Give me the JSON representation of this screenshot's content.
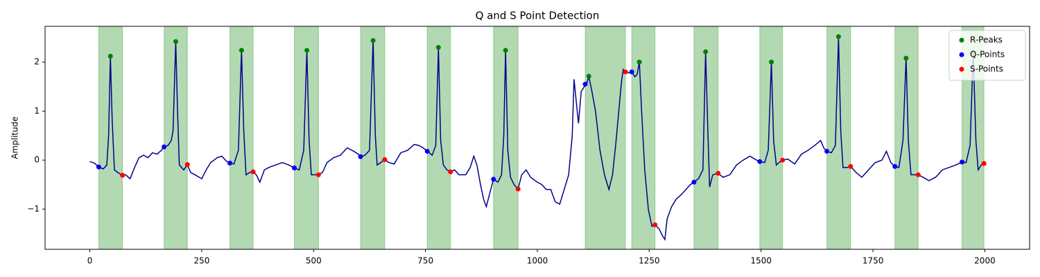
{
  "chart_data": {
    "type": "line",
    "title": "Q and S Point Detection",
    "ylabel": "Amplitude",
    "xlim": [
      -100,
      2100
    ],
    "ylim": [
      -1.82,
      2.73
    ],
    "xticks": [
      0,
      250,
      500,
      750,
      1000,
      1250,
      1500,
      1750,
      2000
    ],
    "yticks": [
      {
        "value": -1,
        "label": "−1"
      },
      0,
      1,
      2
    ],
    "legend": "upper right",
    "span_color": "#008000",
    "spans": [
      [
        20,
        73
      ],
      [
        166,
        218
      ],
      [
        313,
        365
      ],
      [
        457,
        511
      ],
      [
        605,
        659
      ],
      [
        754,
        806
      ],
      [
        902,
        957
      ],
      [
        1107,
        1197
      ],
      [
        1211,
        1263
      ],
      [
        1350,
        1404
      ],
      [
        1497,
        1548
      ],
      [
        1647,
        1700
      ],
      [
        1799,
        1851
      ],
      [
        1949,
        1998
      ]
    ],
    "series": [
      {
        "type": "line",
        "color": "#00008b",
        "x": [
          0,
          10,
          20,
          30,
          38,
          42,
          46,
          50,
          55,
          62,
          73,
          80,
          90,
          100,
          110,
          120,
          130,
          140,
          150,
          160,
          166,
          175,
          182,
          186,
          192,
          196,
          200,
          210,
          218,
          225,
          235,
          250,
          260,
          270,
          285,
          295,
          305,
          313,
          322,
          332,
          339,
          344,
          349,
          358,
          365,
          372,
          380,
          390,
          400,
          415,
          430,
          445,
          457,
          468,
          478,
          485,
          490,
          495,
          505,
          511,
          520,
          530,
          545,
          560,
          575,
          590,
          600,
          605,
          615,
          625,
          633,
          638,
          642,
          650,
          659,
          668,
          680,
          695,
          710,
          725,
          735,
          745,
          754,
          765,
          773,
          779,
          784,
          790,
          798,
          806,
          815,
          825,
          840,
          850,
          858,
          865,
          873,
          880,
          886,
          893,
          902,
          912,
          920,
          925,
          929,
          934,
          940,
          948,
          957,
          965,
          975,
          985,
          1000,
          1010,
          1020,
          1030,
          1040,
          1050,
          1060,
          1070,
          1078,
          1082,
          1088,
          1092,
          1098,
          1105,
          1110,
          1115,
          1122,
          1130,
          1140,
          1150,
          1160,
          1168,
          1175,
          1182,
          1188,
          1192,
          1197,
          1205,
          1211,
          1218,
          1223,
          1228,
          1233,
          1240,
          1248,
          1256,
          1263,
          1272,
          1280,
          1285,
          1290,
          1300,
          1310,
          1322,
          1332,
          1342,
          1350,
          1360,
          1370,
          1376,
          1381,
          1385,
          1392,
          1404,
          1415,
          1430,
          1445,
          1460,
          1475,
          1490,
          1497,
          1508,
          1516,
          1523,
          1528,
          1534,
          1540,
          1548,
          1560,
          1575,
          1590,
          1605,
          1620,
          1633,
          1640,
          1647,
          1657,
          1666,
          1673,
          1678,
          1683,
          1692,
          1700,
          1712,
          1725,
          1740,
          1755,
          1770,
          1780,
          1790,
          1799,
          1808,
          1817,
          1824,
          1829,
          1835,
          1843,
          1851,
          1862,
          1875,
          1890,
          1905,
          1920,
          1935,
          1949,
          1958,
          1967,
          1974,
          1980,
          1985,
          1992,
          1998
        ],
        "y": [
          -0.03,
          -0.06,
          -0.14,
          -0.18,
          -0.1,
          0.5,
          2.12,
          0.8,
          -0.2,
          -0.25,
          -0.31,
          -0.3,
          -0.38,
          -0.15,
          0.05,
          0.1,
          0.05,
          0.15,
          0.12,
          0.2,
          0.27,
          0.3,
          0.4,
          0.6,
          2.42,
          1.0,
          -0.1,
          -0.2,
          -0.09,
          -0.25,
          -0.3,
          -0.38,
          -0.2,
          -0.05,
          0.05,
          0.08,
          -0.02,
          -0.06,
          -0.08,
          0.2,
          2.24,
          0.6,
          -0.3,
          -0.25,
          -0.24,
          -0.3,
          -0.45,
          -0.2,
          -0.15,
          -0.1,
          -0.05,
          -0.1,
          -0.16,
          -0.2,
          0.2,
          2.24,
          0.4,
          -0.3,
          -0.3,
          -0.3,
          -0.25,
          -0.05,
          0.05,
          0.1,
          0.25,
          0.18,
          0.12,
          0.07,
          0.1,
          0.2,
          2.44,
          0.5,
          -0.1,
          -0.05,
          0.01,
          -0.05,
          -0.08,
          0.15,
          0.2,
          0.32,
          0.3,
          0.25,
          0.18,
          0.1,
          0.3,
          2.3,
          0.4,
          -0.1,
          -0.2,
          -0.24,
          -0.2,
          -0.3,
          -0.3,
          -0.15,
          0.08,
          -0.1,
          -0.5,
          -0.8,
          -0.95,
          -0.7,
          -0.39,
          -0.45,
          -0.3,
          0.5,
          2.24,
          0.2,
          -0.35,
          -0.5,
          -0.59,
          -0.3,
          -0.2,
          -0.35,
          -0.45,
          -0.5,
          -0.6,
          -0.6,
          -0.85,
          -0.9,
          -0.6,
          -0.3,
          0.5,
          1.65,
          1.1,
          0.75,
          1.4,
          1.5,
          1.55,
          1.71,
          1.4,
          1.0,
          0.2,
          -0.3,
          -0.6,
          -0.3,
          0.3,
          1.0,
          1.6,
          1.85,
          1.8,
          1.78,
          1.8,
          1.7,
          1.75,
          2.0,
          1.0,
          -0.2,
          -1.0,
          -1.35,
          -1.32,
          -1.4,
          -1.55,
          -1.62,
          -1.2,
          -0.95,
          -0.8,
          -0.7,
          -0.6,
          -0.5,
          -0.45,
          -0.38,
          -0.2,
          2.21,
          0.6,
          -0.55,
          -0.3,
          -0.27,
          -0.35,
          -0.3,
          -0.1,
          0.0,
          0.08,
          0.0,
          -0.03,
          -0.05,
          0.2,
          2.0,
          0.4,
          -0.1,
          -0.05,
          0.0,
          0.02,
          -0.08,
          0.12,
          0.2,
          0.3,
          0.4,
          0.25,
          0.18,
          0.15,
          0.3,
          2.52,
          0.6,
          -0.15,
          -0.15,
          -0.13,
          -0.25,
          -0.35,
          -0.2,
          -0.05,
          0.0,
          0.18,
          -0.05,
          -0.13,
          -0.15,
          0.4,
          2.08,
          0.4,
          -0.3,
          -0.3,
          -0.3,
          -0.35,
          -0.42,
          -0.35,
          -0.2,
          -0.15,
          -0.1,
          -0.04,
          -0.05,
          0.3,
          2.2,
          0.4,
          -0.2,
          -0.1,
          -0.07
        ]
      },
      {
        "type": "scatter",
        "name": "R-Peaks",
        "color": "#008000",
        "x": [
          46,
          192,
          339,
          485,
          633,
          779,
          929,
          1115,
          1228,
          1376,
          1523,
          1673,
          1824,
          1974
        ],
        "y": [
          2.12,
          2.42,
          2.24,
          2.24,
          2.44,
          2.3,
          2.24,
          1.71,
          2.0,
          2.21,
          2.0,
          2.52,
          2.08,
          2.2
        ]
      },
      {
        "type": "scatter",
        "name": "Q-Points",
        "color": "#0000ff",
        "x": [
          20,
          166,
          313,
          457,
          605,
          754,
          902,
          1107,
          1211,
          1350,
          1497,
          1647,
          1799,
          1949
        ],
        "y": [
          -0.14,
          0.27,
          -0.06,
          -0.16,
          0.07,
          0.18,
          -0.39,
          1.55,
          1.8,
          -0.45,
          -0.03,
          0.18,
          -0.13,
          -0.04
        ]
      },
      {
        "type": "scatter",
        "name": "S-Points",
        "color": "#ff0000",
        "x": [
          73,
          218,
          365,
          511,
          659,
          806,
          957,
          1197,
          1263,
          1404,
          1548,
          1700,
          1851,
          1998
        ],
        "y": [
          -0.31,
          -0.09,
          -0.24,
          -0.3,
          0.01,
          -0.24,
          -0.59,
          1.8,
          -1.32,
          -0.27,
          0.0,
          -0.13,
          -0.3,
          -0.07
        ]
      }
    ]
  }
}
